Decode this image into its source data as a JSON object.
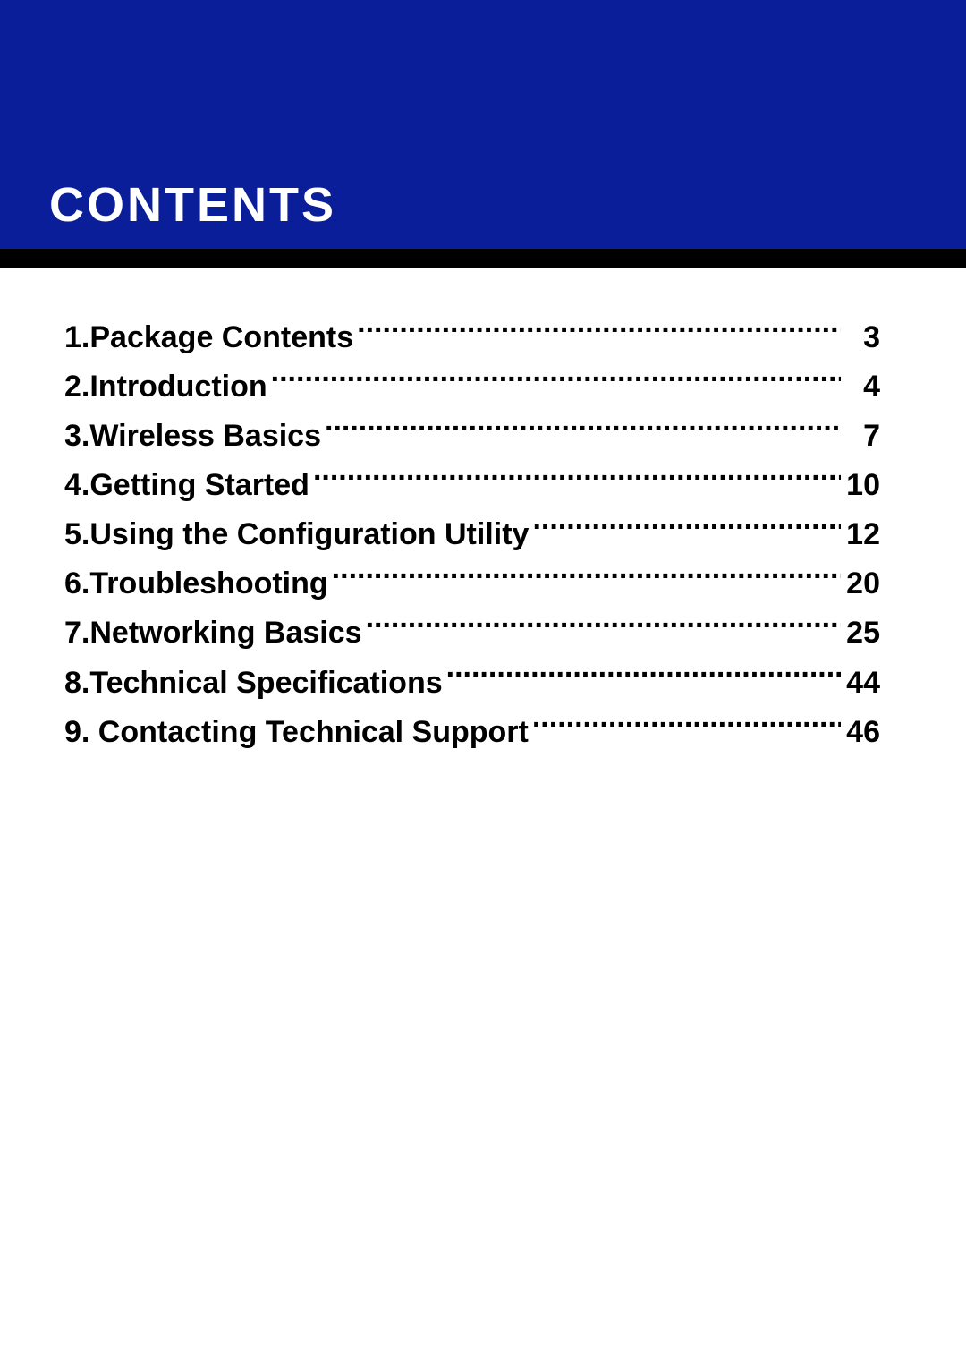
{
  "header": {
    "title": "CONTENTS",
    "background_color": "#0b1e99",
    "title_color": "#ffffff",
    "title_fontsize": 54,
    "black_band_color": "#000000"
  },
  "toc": {
    "font_color": "#000000",
    "font_size": 34,
    "font_weight": 700,
    "entries": [
      {
        "number": "1.",
        "title": "Package Contents",
        "page": "3"
      },
      {
        "number": "2.",
        "title": "Introduction",
        "page": "4"
      },
      {
        "number": "3.",
        "title": "Wireless Basics",
        "page": "7"
      },
      {
        "number": "4.",
        "title": "Getting Started",
        "page": "10"
      },
      {
        "number": "5.",
        "title": "Using the Configuration Utility",
        "page": "12"
      },
      {
        "number": "6.",
        "title": "Troubleshooting",
        "page": "20"
      },
      {
        "number": "7.",
        "title": "Networking Basics",
        "page": "25"
      },
      {
        "number": "8.",
        "title": "Technical Specifications",
        "page": "44"
      },
      {
        "number": "9.",
        "title": " Contacting Technical Support",
        "page": "46"
      }
    ]
  }
}
